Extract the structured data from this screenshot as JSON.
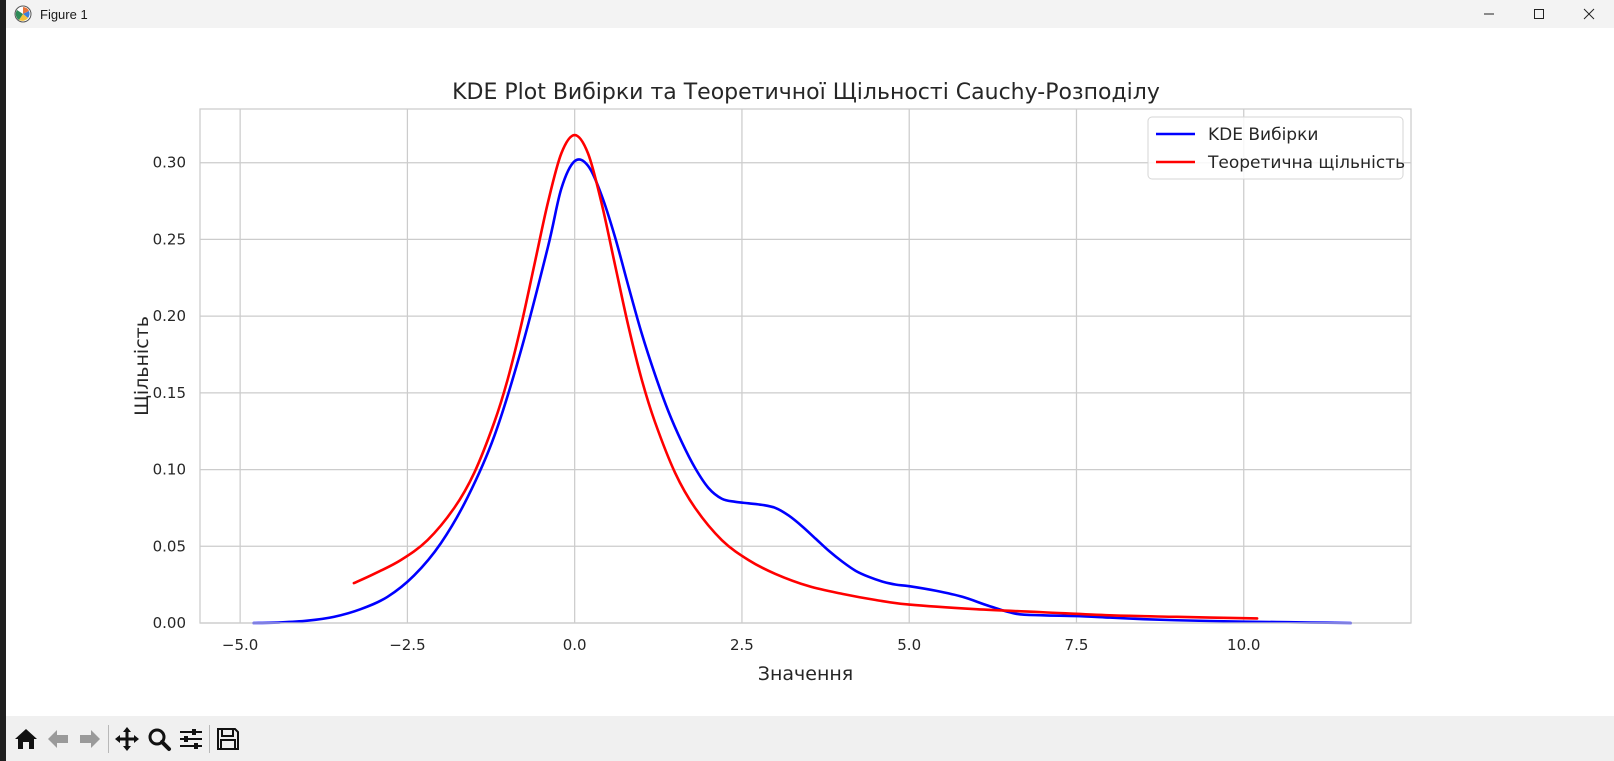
{
  "window": {
    "title": "Figure 1",
    "app_icon": "matplotlib-icon",
    "controls": [
      "minimize-icon",
      "maximize-icon",
      "close-icon"
    ]
  },
  "toolbar": {
    "buttons": [
      {
        "name": "home-icon",
        "label": "Home"
      },
      {
        "name": "back-arrow-icon",
        "label": "Back"
      },
      {
        "name": "forward-arrow-icon",
        "label": "Forward"
      },
      {
        "name": "pan-icon",
        "label": "Pan"
      },
      {
        "name": "zoom-icon",
        "label": "Zoom"
      },
      {
        "name": "configure-subplots-icon",
        "label": "Subplots"
      },
      {
        "name": "save-icon",
        "label": "Save"
      }
    ]
  },
  "chart_data": {
    "type": "line",
    "title": "KDE Plot Вибірки та Теоретичної Щільності Cauchy-Розподілу",
    "xlabel": "Значення",
    "ylabel": "Щільність",
    "xlim": [
      -5.6,
      12.5
    ],
    "ylim": [
      0,
      0.335
    ],
    "xticks": [
      -5.0,
      -2.5,
      0.0,
      2.5,
      5.0,
      7.5,
      10.0
    ],
    "xtick_labels": [
      "−5.0",
      "−2.5",
      "0.0",
      "2.5",
      "5.0",
      "7.5",
      "10.0"
    ],
    "yticks": [
      0.0,
      0.05,
      0.1,
      0.15,
      0.2,
      0.25,
      0.3
    ],
    "ytick_labels": [
      "0.00",
      "0.05",
      "0.10",
      "0.15",
      "0.20",
      "0.25",
      "0.30"
    ],
    "grid": true,
    "legend_position": "top-right",
    "series": [
      {
        "name": "KDE Вибірки",
        "color": "#0000ff",
        "x": [
          -4.8,
          -4.4,
          -4.0,
          -3.6,
          -3.2,
          -2.8,
          -2.4,
          -2.0,
          -1.6,
          -1.2,
          -0.8,
          -0.4,
          -0.2,
          0.0,
          0.2,
          0.4,
          0.6,
          0.8,
          1.0,
          1.2,
          1.4,
          1.6,
          1.8,
          2.0,
          2.2,
          2.4,
          2.6,
          2.8,
          3.0,
          3.2,
          3.4,
          3.6,
          3.8,
          4.0,
          4.2,
          4.4,
          4.6,
          4.8,
          5.0,
          5.4,
          5.8,
          6.2,
          6.6,
          7.0,
          7.5,
          8.0,
          8.5,
          9.0,
          9.5,
          10.0,
          10.5,
          11.0,
          11.6
        ],
        "y": [
          0.0,
          0.0004,
          0.0015,
          0.004,
          0.009,
          0.017,
          0.031,
          0.052,
          0.082,
          0.122,
          0.178,
          0.245,
          0.283,
          0.301,
          0.298,
          0.279,
          0.252,
          0.22,
          0.189,
          0.162,
          0.138,
          0.118,
          0.101,
          0.088,
          0.081,
          0.079,
          0.078,
          0.077,
          0.075,
          0.07,
          0.063,
          0.055,
          0.047,
          0.04,
          0.034,
          0.03,
          0.027,
          0.025,
          0.024,
          0.021,
          0.017,
          0.011,
          0.006,
          0.005,
          0.0045,
          0.0035,
          0.0025,
          0.0018,
          0.0013,
          0.0009,
          0.0006,
          0.0003,
          0.0
        ]
      },
      {
        "name": "Теоретична щільність",
        "color": "#ff0000",
        "x": [
          -3.3,
          -3.0,
          -2.6,
          -2.2,
          -1.8,
          -1.5,
          -1.2,
          -1.0,
          -0.8,
          -0.6,
          -0.4,
          -0.2,
          0.0,
          0.2,
          0.4,
          0.6,
          0.8,
          1.0,
          1.2,
          1.5,
          1.8,
          2.2,
          2.6,
          3.0,
          3.5,
          4.0,
          4.5,
          5.0,
          6.0,
          7.0,
          8.0,
          9.0,
          10.2
        ],
        "y": [
          0.026,
          0.032,
          0.041,
          0.054,
          0.075,
          0.098,
          0.131,
          0.159,
          0.194,
          0.234,
          0.274,
          0.306,
          0.318,
          0.306,
          0.274,
          0.234,
          0.194,
          0.159,
          0.131,
          0.098,
          0.075,
          0.054,
          0.041,
          0.032,
          0.024,
          0.019,
          0.015,
          0.012,
          0.009,
          0.007,
          0.005,
          0.004,
          0.003
        ]
      }
    ]
  }
}
